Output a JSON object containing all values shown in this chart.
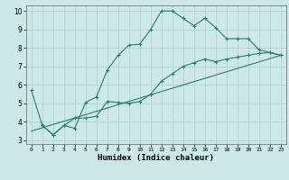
{
  "xlabel": "Humidex (Indice chaleur)",
  "bg_color": "#cce8e8",
  "line_color": "#2e7d6e",
  "grid_color": "#aacfcf",
  "xlim": [
    -0.5,
    23.5
  ],
  "ylim": [
    2.8,
    10.3
  ],
  "yticks": [
    3,
    4,
    5,
    6,
    7,
    8,
    9,
    10
  ],
  "xticks": [
    0,
    1,
    2,
    3,
    4,
    5,
    6,
    7,
    8,
    9,
    10,
    11,
    12,
    13,
    14,
    15,
    16,
    17,
    18,
    19,
    20,
    21,
    22,
    23
  ],
  "line1_x": [
    0,
    1,
    2,
    3,
    4,
    5,
    6,
    7,
    8,
    9,
    10,
    11,
    12,
    13,
    14,
    15,
    16,
    17,
    18,
    19,
    20,
    21,
    22,
    23
  ],
  "line1_y": [
    5.7,
    3.8,
    3.3,
    3.8,
    3.65,
    5.05,
    5.35,
    6.8,
    7.6,
    8.15,
    8.2,
    9.0,
    10.0,
    10.0,
    9.6,
    9.2,
    9.6,
    9.1,
    8.5,
    8.5,
    8.5,
    7.9,
    7.75,
    7.6
  ],
  "line2_x": [
    1,
    2,
    3,
    4,
    5,
    6,
    7,
    8,
    9,
    10,
    11,
    12,
    13,
    14,
    15,
    16,
    17,
    18,
    19,
    20,
    21,
    22,
    23
  ],
  "line2_y": [
    3.8,
    3.3,
    3.8,
    4.2,
    4.2,
    4.3,
    5.1,
    5.05,
    5.0,
    5.1,
    5.5,
    6.2,
    6.6,
    7.0,
    7.2,
    7.4,
    7.25,
    7.4,
    7.5,
    7.6,
    7.7,
    7.75,
    7.6
  ],
  "line3_x": [
    0,
    23
  ],
  "line3_y": [
    3.5,
    7.6
  ]
}
